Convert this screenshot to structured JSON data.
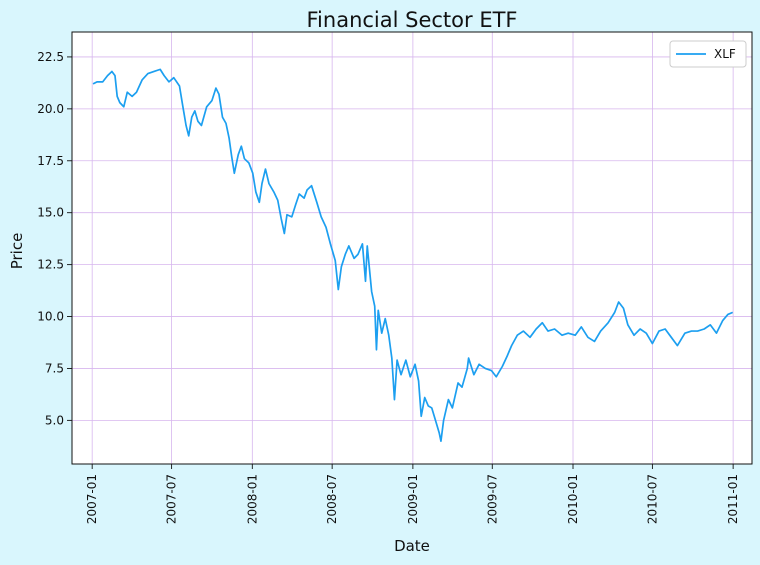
{
  "chart_data": {
    "type": "line",
    "title": "Financial Sector ETF",
    "xlabel": "Date",
    "ylabel": "Price",
    "x_type": "date",
    "xlim": [
      "2006-11-16",
      "2011-02-13"
    ],
    "ylim": [
      2.9,
      23.7
    ],
    "x_ticks": [
      "2007-01",
      "2007-07",
      "2008-01",
      "2008-07",
      "2009-01",
      "2009-07",
      "2010-01",
      "2010-07",
      "2011-01"
    ],
    "y_ticks": [
      5.0,
      7.5,
      10.0,
      12.5,
      15.0,
      17.5,
      20.0,
      22.5
    ],
    "grid": true,
    "legend_position": "top-right",
    "colors": {
      "series": "#1c9ff0",
      "grid": "#d7b6ee",
      "figure_background": "#d9f6fd",
      "plot_background": "#ffffff"
    },
    "series": [
      {
        "name": "XLF",
        "points": [
          [
            "2007-01-03",
            21.2
          ],
          [
            "2007-01-12",
            21.3
          ],
          [
            "2007-01-25",
            21.3
          ],
          [
            "2007-02-05",
            21.6
          ],
          [
            "2007-02-15",
            21.8
          ],
          [
            "2007-02-22",
            21.6
          ],
          [
            "2007-02-27",
            20.6
          ],
          [
            "2007-03-05",
            20.3
          ],
          [
            "2007-03-14",
            20.1
          ],
          [
            "2007-03-22",
            20.8
          ],
          [
            "2007-04-02",
            20.6
          ],
          [
            "2007-04-12",
            20.8
          ],
          [
            "2007-04-25",
            21.4
          ],
          [
            "2007-05-08",
            21.7
          ],
          [
            "2007-05-22",
            21.8
          ],
          [
            "2007-06-05",
            21.9
          ],
          [
            "2007-06-14",
            21.6
          ],
          [
            "2007-06-25",
            21.3
          ],
          [
            "2007-07-06",
            21.5
          ],
          [
            "2007-07-19",
            21.1
          ],
          [
            "2007-07-26",
            20.2
          ],
          [
            "2007-08-03",
            19.2
          ],
          [
            "2007-08-09",
            18.7
          ],
          [
            "2007-08-16",
            19.6
          ],
          [
            "2007-08-23",
            19.9
          ],
          [
            "2007-08-30",
            19.4
          ],
          [
            "2007-09-07",
            19.2
          ],
          [
            "2007-09-19",
            20.1
          ],
          [
            "2007-10-01",
            20.4
          ],
          [
            "2007-10-10",
            21.0
          ],
          [
            "2007-10-17",
            20.7
          ],
          [
            "2007-10-25",
            19.6
          ],
          [
            "2007-11-02",
            19.3
          ],
          [
            "2007-11-09",
            18.6
          ],
          [
            "2007-11-15",
            17.7
          ],
          [
            "2007-11-21",
            16.9
          ],
          [
            "2007-11-30",
            17.8
          ],
          [
            "2007-12-07",
            18.2
          ],
          [
            "2007-12-14",
            17.6
          ],
          [
            "2007-12-24",
            17.4
          ],
          [
            "2008-01-02",
            16.9
          ],
          [
            "2008-01-09",
            16.0
          ],
          [
            "2008-01-17",
            15.5
          ],
          [
            "2008-01-23",
            16.4
          ],
          [
            "2008-01-31",
            17.1
          ],
          [
            "2008-02-08",
            16.4
          ],
          [
            "2008-02-19",
            16.0
          ],
          [
            "2008-02-28",
            15.6
          ],
          [
            "2008-03-07",
            14.7
          ],
          [
            "2008-03-14",
            14.0
          ],
          [
            "2008-03-20",
            14.9
          ],
          [
            "2008-03-31",
            14.8
          ],
          [
            "2008-04-09",
            15.4
          ],
          [
            "2008-04-17",
            15.9
          ],
          [
            "2008-04-28",
            15.7
          ],
          [
            "2008-05-05",
            16.1
          ],
          [
            "2008-05-15",
            16.3
          ],
          [
            "2008-05-27",
            15.5
          ],
          [
            "2008-06-06",
            14.8
          ],
          [
            "2008-06-17",
            14.3
          ],
          [
            "2008-06-27",
            13.5
          ],
          [
            "2008-07-08",
            12.7
          ],
          [
            "2008-07-15",
            11.3
          ],
          [
            "2008-07-22",
            12.4
          ],
          [
            "2008-07-31",
            13.0
          ],
          [
            "2008-08-08",
            13.4
          ],
          [
            "2008-08-20",
            12.8
          ],
          [
            "2008-08-29",
            13.0
          ],
          [
            "2008-09-08",
            13.5
          ],
          [
            "2008-09-15",
            11.7
          ],
          [
            "2008-09-19",
            13.4
          ],
          [
            "2008-09-29",
            11.2
          ],
          [
            "2008-10-06",
            10.5
          ],
          [
            "2008-10-10",
            8.4
          ],
          [
            "2008-10-14",
            10.3
          ],
          [
            "2008-10-22",
            9.2
          ],
          [
            "2008-10-30",
            9.9
          ],
          [
            "2008-11-07",
            9.1
          ],
          [
            "2008-11-14",
            8.0
          ],
          [
            "2008-11-20",
            6.0
          ],
          [
            "2008-11-26",
            7.9
          ],
          [
            "2008-12-05",
            7.2
          ],
          [
            "2008-12-16",
            7.9
          ],
          [
            "2008-12-26",
            7.1
          ],
          [
            "2009-01-06",
            7.7
          ],
          [
            "2009-01-14",
            6.9
          ],
          [
            "2009-01-20",
            5.2
          ],
          [
            "2009-01-28",
            6.1
          ],
          [
            "2009-02-05",
            5.7
          ],
          [
            "2009-02-13",
            5.6
          ],
          [
            "2009-02-23",
            4.9
          ],
          [
            "2009-03-02",
            4.4
          ],
          [
            "2009-03-06",
            4.0
          ],
          [
            "2009-03-12",
            5.0
          ],
          [
            "2009-03-23",
            6.0
          ],
          [
            "2009-04-01",
            5.6
          ],
          [
            "2009-04-14",
            6.8
          ],
          [
            "2009-04-23",
            6.6
          ],
          [
            "2009-05-05",
            7.5
          ],
          [
            "2009-05-08",
            8.0
          ],
          [
            "2009-05-20",
            7.2
          ],
          [
            "2009-06-01",
            7.7
          ],
          [
            "2009-06-15",
            7.5
          ],
          [
            "2009-06-29",
            7.4
          ],
          [
            "2009-07-10",
            7.1
          ],
          [
            "2009-07-24",
            7.6
          ],
          [
            "2009-08-04",
            8.1
          ],
          [
            "2009-08-14",
            8.6
          ],
          [
            "2009-08-27",
            9.1
          ],
          [
            "2009-09-10",
            9.3
          ],
          [
            "2009-09-25",
            9.0
          ],
          [
            "2009-10-09",
            9.4
          ],
          [
            "2009-10-23",
            9.7
          ],
          [
            "2009-11-05",
            9.3
          ],
          [
            "2009-11-20",
            9.4
          ],
          [
            "2009-12-07",
            9.1
          ],
          [
            "2009-12-21",
            9.2
          ],
          [
            "2010-01-06",
            9.1
          ],
          [
            "2010-01-20",
            9.5
          ],
          [
            "2010-02-04",
            9.0
          ],
          [
            "2010-02-19",
            8.8
          ],
          [
            "2010-03-05",
            9.3
          ],
          [
            "2010-03-22",
            9.7
          ],
          [
            "2010-04-06",
            10.2
          ],
          [
            "2010-04-15",
            10.7
          ],
          [
            "2010-04-26",
            10.4
          ],
          [
            "2010-05-06",
            9.6
          ],
          [
            "2010-05-20",
            9.1
          ],
          [
            "2010-06-03",
            9.4
          ],
          [
            "2010-06-17",
            9.2
          ],
          [
            "2010-07-01",
            8.7
          ],
          [
            "2010-07-16",
            9.3
          ],
          [
            "2010-07-30",
            9.4
          ],
          [
            "2010-08-13",
            9.0
          ],
          [
            "2010-08-27",
            8.6
          ],
          [
            "2010-09-13",
            9.2
          ],
          [
            "2010-09-28",
            9.3
          ],
          [
            "2010-10-12",
            9.3
          ],
          [
            "2010-10-27",
            9.4
          ],
          [
            "2010-11-10",
            9.6
          ],
          [
            "2010-11-24",
            9.2
          ],
          [
            "2010-12-08",
            9.8
          ],
          [
            "2010-12-20",
            10.1
          ],
          [
            "2010-12-31",
            10.2
          ]
        ]
      }
    ]
  }
}
